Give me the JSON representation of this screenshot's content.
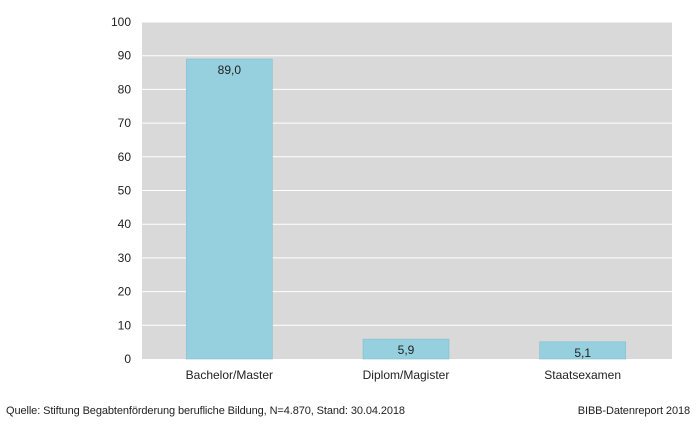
{
  "chart_data": {
    "type": "bar",
    "categories": [
      "Bachelor/Master",
      "Diplom/Magister",
      "Staatsexamen"
    ],
    "values": [
      89.0,
      5.9,
      5.1
    ],
    "value_labels": [
      "89,0",
      "5,9",
      "5,1"
    ],
    "title": "",
    "xlabel": "",
    "ylabel": "",
    "ylim": [
      0,
      100
    ],
    "yticks": [
      0,
      10,
      20,
      30,
      40,
      50,
      60,
      70,
      80,
      90,
      100
    ],
    "grid": true,
    "colors": {
      "plot_background": "#d9d9d9",
      "gridline": "#ffffff",
      "bar": "#96d0df",
      "bar_border": "#7fbfd1"
    }
  },
  "footer": {
    "source": "Quelle: Stiftung Begabtenförderung berufliche Bildung, N=4.870, Stand: 30.04.2018",
    "report": "BIBB-Datenreport 2018"
  }
}
